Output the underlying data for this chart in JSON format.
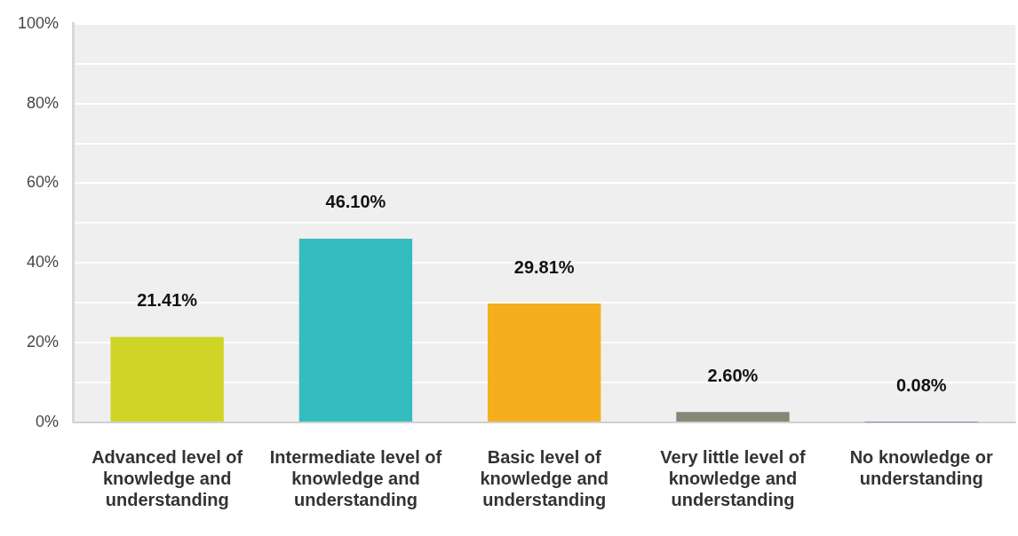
{
  "chart_data": {
    "type": "bar",
    "categories": [
      "Advanced level of knowledge and understanding",
      "Intermediate level of knowledge and understanding",
      "Basic level of knowledge and understanding",
      "Very little level of knowledge and understanding",
      "No knowledge or understanding"
    ],
    "values": [
      21.41,
      46.1,
      29.81,
      2.6,
      0.08
    ],
    "colors": [
      "#cfd426",
      "#33bdbf",
      "#f5ae1e",
      "#868776",
      "#8e6fb0"
    ],
    "value_labels": [
      "21.41%",
      "46.10%",
      "29.81%",
      "2.60%",
      "0.08%"
    ],
    "ylim": [
      0,
      100
    ],
    "yticks": [
      {
        "value": 0,
        "label": "0%"
      },
      {
        "value": 10,
        "label": null
      },
      {
        "value": 20,
        "label": "20%"
      },
      {
        "value": 30,
        "label": null
      },
      {
        "value": 40,
        "label": "40%"
      },
      {
        "value": 50,
        "label": null
      },
      {
        "value": 60,
        "label": "60%"
      },
      {
        "value": 70,
        "label": null
      },
      {
        "value": 80,
        "label": "80%"
      },
      {
        "value": 90,
        "label": null
      },
      {
        "value": 100,
        "label": "100%"
      }
    ],
    "grid": "y",
    "legend": false
  }
}
